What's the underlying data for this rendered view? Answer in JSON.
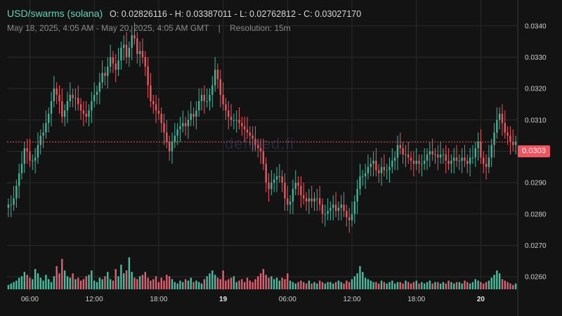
{
  "header": {
    "pair": "USD/swarms (solana)",
    "ohlc": "O: 0.02826116 - H: 0.03387011 - L: 0.02762812 - C: 0.03027170",
    "range": "May 18, 2025, 4:05 AM - May 20, 2025, 4:05 AM GMT",
    "separator": "|",
    "resolution": "Resolution: 15m"
  },
  "watermark": "defined.fi",
  "colors": {
    "background": "#131313",
    "grid": "#2b2b2b",
    "up": "#40b59a",
    "down": "#f0555f",
    "volume_up": "#4fd1b0",
    "volume_down": "#f46a7d",
    "accent": "#5fd3b4"
  },
  "chart_data": {
    "type": "candlestick",
    "last_price": 0.0303,
    "last_price_label": "0.0303",
    "ylim": [
      0.0256,
      0.0346
    ],
    "yticks": [
      {
        "value": 0.034,
        "label": "0.0340"
      },
      {
        "value": 0.033,
        "label": "0.0330"
      },
      {
        "value": 0.032,
        "label": "0.0320"
      },
      {
        "value": 0.031,
        "label": "0.0310"
      },
      {
        "value": 0.03,
        "label": "0.0300"
      },
      {
        "value": 0.029,
        "label": "0.0290"
      },
      {
        "value": 0.028,
        "label": "0.0280"
      },
      {
        "value": 0.027,
        "label": "0.0270"
      },
      {
        "value": 0.026,
        "label": "0.0260"
      }
    ],
    "xticks": [
      {
        "label": "06:00",
        "bold": false
      },
      {
        "label": "12:00",
        "bold": false
      },
      {
        "label": "18:00",
        "bold": false
      },
      {
        "label": "19",
        "bold": true
      },
      {
        "label": "06:00",
        "bold": false
      },
      {
        "label": "12:00",
        "bold": false
      },
      {
        "label": "18:00",
        "bold": false
      },
      {
        "label": "20",
        "bold": true
      }
    ],
    "xtick_candle_index": [
      8,
      32,
      56,
      80,
      104,
      128,
      152,
      176
    ],
    "close_series": [
      0.0283,
      0.0283,
      0.0285,
      0.0289,
      0.0293,
      0.0296,
      0.0301,
      0.03,
      0.0297,
      0.0297,
      0.0298,
      0.0302,
      0.0305,
      0.0306,
      0.0309,
      0.0312,
      0.0316,
      0.032,
      0.0318,
      0.0316,
      0.0311,
      0.0313,
      0.0316,
      0.0318,
      0.0317,
      0.0317,
      0.0315,
      0.0313,
      0.0312,
      0.0311,
      0.0313,
      0.0316,
      0.0318,
      0.0319,
      0.0322,
      0.0325,
      0.0324,
      0.0327,
      0.033,
      0.0328,
      0.0326,
      0.0329,
      0.0333,
      0.0334,
      0.033,
      0.0333,
      0.0337,
      0.0336,
      0.0331,
      0.0332,
      0.033,
      0.0327,
      0.0321,
      0.0316,
      0.0315,
      0.0313,
      0.0312,
      0.0309,
      0.0306,
      0.0303,
      0.03,
      0.0303,
      0.0305,
      0.0307,
      0.0308,
      0.0309,
      0.0308,
      0.031,
      0.0312,
      0.0311,
      0.0313,
      0.0316,
      0.0318,
      0.0316,
      0.0316,
      0.0318,
      0.0321,
      0.0326,
      0.0323,
      0.0318,
      0.0315,
      0.0313,
      0.0311,
      0.031,
      0.031,
      0.031,
      0.0309,
      0.0308,
      0.0307,
      0.0306,
      0.0305,
      0.0304,
      0.0302,
      0.0301,
      0.03,
      0.0296,
      0.029,
      0.0288,
      0.029,
      0.0291,
      0.0292,
      0.0292,
      0.029,
      0.0285,
      0.0283,
      0.0284,
      0.0288,
      0.029,
      0.0289,
      0.0286,
      0.0285,
      0.0284,
      0.0285,
      0.0284,
      0.0285,
      0.0285,
      0.0283,
      0.028,
      0.028,
      0.0281,
      0.0282,
      0.0283,
      0.0281,
      0.0282,
      0.0283,
      0.0281,
      0.0279,
      0.0278,
      0.028,
      0.0284,
      0.0288,
      0.0292,
      0.0292,
      0.0293,
      0.0295,
      0.0296,
      0.0297,
      0.0294,
      0.0293,
      0.0295,
      0.0294,
      0.0294,
      0.0295,
      0.0297,
      0.0298,
      0.0302,
      0.0301,
      0.0299,
      0.0299,
      0.0298,
      0.0297,
      0.0296,
      0.0297,
      0.0296,
      0.0296,
      0.0297,
      0.0299,
      0.03,
      0.0299,
      0.0299,
      0.0298,
      0.0299,
      0.0299,
      0.0297,
      0.0296,
      0.0297,
      0.0298,
      0.0297,
      0.0297,
      0.0298,
      0.0297,
      0.0296,
      0.0298,
      0.0298,
      0.0301,
      0.0303,
      0.0298,
      0.0296,
      0.0295,
      0.0298,
      0.0302,
      0.0306,
      0.031,
      0.0312,
      0.0309,
      0.0306,
      0.0305,
      0.0303,
      0.0302,
      0.0303
    ],
    "volume_ylim": [
      0,
      30
    ],
    "volume_series": [
      3,
      4,
      5,
      6,
      8,
      9,
      12,
      10,
      8,
      7,
      14,
      11,
      8,
      6,
      10,
      7,
      5,
      9,
      16,
      11,
      21,
      13,
      9,
      8,
      11,
      7,
      8,
      6,
      7,
      9,
      10,
      13,
      6,
      5,
      8,
      7,
      9,
      12,
      7,
      6,
      14,
      9,
      17,
      11,
      13,
      22,
      12,
      8,
      7,
      9,
      10,
      12,
      8,
      6,
      7,
      9,
      5,
      8,
      6,
      10,
      9,
      7,
      5,
      4,
      6,
      5,
      7,
      6,
      8,
      5,
      6,
      5,
      4,
      7,
      9,
      11,
      13,
      10,
      8,
      7,
      13,
      6,
      7,
      8,
      9,
      5,
      6,
      7,
      5,
      8,
      6,
      5,
      7,
      9,
      11,
      14,
      10,
      8,
      9,
      7,
      8,
      6,
      8,
      7,
      11,
      6,
      5,
      4,
      5,
      6,
      5,
      4,
      6,
      4,
      5,
      4,
      6,
      5,
      4,
      5,
      5,
      4,
      5,
      6,
      5,
      4,
      6,
      5,
      7,
      9,
      11,
      16,
      12,
      8,
      7,
      6,
      5,
      5,
      4,
      6,
      5,
      4,
      5,
      6,
      4,
      5,
      5,
      4,
      6,
      5,
      4,
      5,
      6,
      4,
      5,
      4,
      5,
      6,
      4,
      5,
      5,
      4,
      5,
      4,
      6,
      5,
      4,
      5,
      5,
      4,
      6,
      5,
      4,
      5,
      7,
      6,
      5,
      4,
      5,
      6,
      8,
      10,
      13,
      11,
      7,
      6,
      5,
      4,
      3,
      4
    ]
  }
}
